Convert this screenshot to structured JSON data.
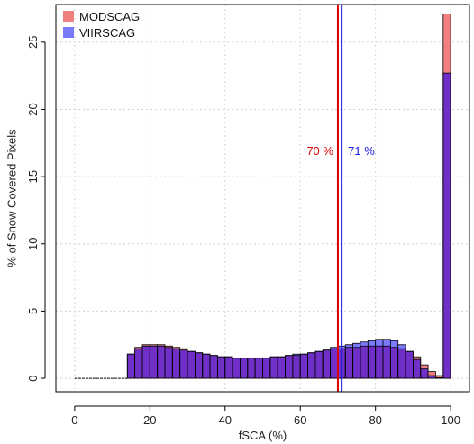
{
  "chart_data": {
    "type": "bar",
    "xlabel": "fSCA (%)",
    "ylabel": "% of Snow Covered Pixels",
    "xlim": [
      -5,
      105
    ],
    "ylim": [
      -1,
      27.8
    ],
    "xticks": [
      0,
      20,
      40,
      60,
      80,
      100
    ],
    "yticks": [
      0,
      5,
      10,
      15,
      20,
      25
    ],
    "grid": true,
    "legend_position": "top-left",
    "bin_width": 2,
    "x": [
      1,
      3,
      5,
      7,
      9,
      11,
      13,
      15,
      17,
      19,
      21,
      23,
      25,
      27,
      29,
      31,
      33,
      35,
      37,
      39,
      41,
      43,
      45,
      47,
      49,
      51,
      53,
      55,
      57,
      59,
      61,
      63,
      65,
      67,
      69,
      71,
      73,
      75,
      77,
      79,
      81,
      83,
      85,
      87,
      89,
      91,
      93,
      95,
      97,
      99
    ],
    "series": [
      {
        "name": "MODSCAG",
        "color": "#f08080",
        "values": [
          0,
          0,
          0,
          0,
          0,
          0,
          0,
          1.8,
          2.3,
          2.5,
          2.5,
          2.5,
          2.4,
          2.3,
          2.2,
          2.0,
          1.9,
          1.8,
          1.7,
          1.6,
          1.6,
          1.5,
          1.5,
          1.5,
          1.5,
          1.5,
          1.6,
          1.6,
          1.7,
          1.7,
          1.8,
          1.9,
          2.0,
          2.1,
          2.2,
          2.2,
          2.3,
          2.3,
          2.4,
          2.4,
          2.4,
          2.4,
          2.3,
          2.2,
          2.0,
          1.6,
          1.0,
          0.5,
          0.2,
          27.1
        ]
      },
      {
        "name": "VIIRSCAG",
        "color": "#7a7aff",
        "values": [
          0,
          0,
          0,
          0,
          0,
          0,
          0,
          1.8,
          2.2,
          2.4,
          2.4,
          2.4,
          2.3,
          2.2,
          2.1,
          2.0,
          1.9,
          1.8,
          1.7,
          1.6,
          1.6,
          1.5,
          1.5,
          1.5,
          1.5,
          1.5,
          1.6,
          1.6,
          1.7,
          1.8,
          1.8,
          1.9,
          2.0,
          2.1,
          2.3,
          2.4,
          2.5,
          2.6,
          2.7,
          2.8,
          2.9,
          2.9,
          2.8,
          2.5,
          2.0,
          1.4,
          0.7,
          0.2,
          0.05,
          22.7
        ]
      }
    ],
    "overlap_color": "#7030c8",
    "annotations": [
      {
        "text": "70 %",
        "x": 70,
        "color": "#e00000"
      },
      {
        "text": "71 %",
        "x": 71,
        "color": "#1a1ae6"
      }
    ],
    "vlines": [
      {
        "x": 70,
        "color": "#e00000"
      },
      {
        "x": 71,
        "color": "#1a1ae6"
      }
    ]
  }
}
